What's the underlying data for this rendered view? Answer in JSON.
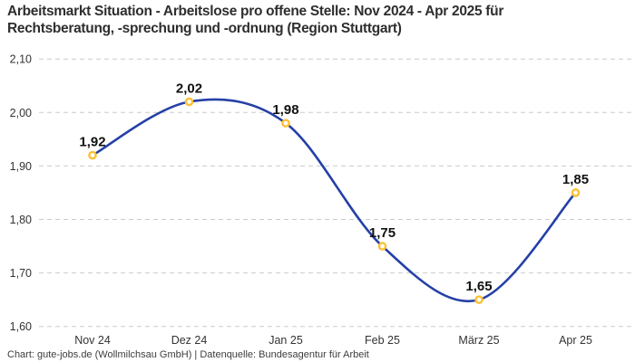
{
  "header": {
    "title_line1": "Arbeitsmarkt Situation - Arbeitslose pro offene Stelle: Nov 2024 - Apr 2025 für",
    "title_line2": "Rechtsberatung, -sprechung und -ordnung (Region Stuttgart)"
  },
  "chart_data": {
    "type": "line",
    "title": "Arbeitsmarkt Situation - Arbeitslose pro offene Stelle: Nov 2024 - Apr 2025 für Rechtsberatung, -sprechung und -ordnung (Region Stuttgart)",
    "categories": [
      "Nov 24",
      "Dez 24",
      "Jan 25",
      "Feb 25",
      "März 25",
      "Apr 25"
    ],
    "values": [
      1.92,
      2.02,
      1.98,
      1.75,
      1.65,
      1.85
    ],
    "value_labels": [
      "1,92",
      "2,02",
      "1,98",
      "1,75",
      "1,65",
      "1,85"
    ],
    "xlabel": "",
    "ylabel": "",
    "ylim": [
      1.6,
      2.1
    ],
    "yticks": {
      "values": [
        2.1,
        2.0,
        1.9,
        1.8,
        1.7,
        1.6
      ],
      "labels": [
        "2,10",
        "2,00",
        "1,90",
        "1,80",
        "1,70",
        "1,60"
      ]
    },
    "grid": "horizontal-dashed",
    "curve": "smooth-spline",
    "legend": "none",
    "colors": {
      "line": "#2540a6",
      "marker_fill": "#ffffff",
      "marker_stroke": "#fcc033",
      "grid": "#cbcbcb",
      "tick_label": "#333333",
      "data_label": "#111111"
    }
  },
  "footer": {
    "credit": "Chart: gute-jobs.de (Wollmilchsau GmbH) | Datenquelle: Bundesagentur für Arbeit"
  }
}
